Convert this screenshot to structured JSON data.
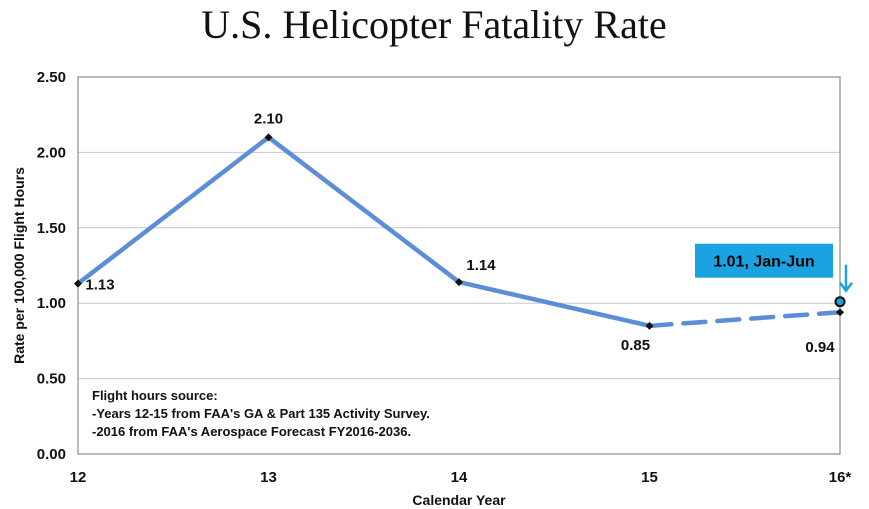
{
  "chart_data": {
    "type": "line",
    "title": "U.S. Helicopter Fatality Rate",
    "xlabel": "Calendar Year",
    "ylabel": "Rate per 100,000 Flight Hours",
    "categories": [
      "12",
      "13",
      "14",
      "15",
      "16*"
    ],
    "y_ticks": [
      "0.00",
      "0.50",
      "1.00",
      "1.50",
      "2.00",
      "2.50"
    ],
    "ylim": [
      0,
      2.5
    ],
    "grid": true,
    "series": [
      {
        "name": "Fatality rate",
        "values": [
          1.13,
          2.1,
          1.14,
          0.85,
          0.94
        ],
        "labels": [
          "1.13",
          "2.10",
          "1.14",
          "0.85",
          "0.94"
        ],
        "color": "#5b8ed6",
        "dashed_from_index": 3
      }
    ],
    "highlight_point": {
      "category": "16*",
      "value": 1.01,
      "label": "1.01, Jan-Jun",
      "color": "#1aa3e0"
    },
    "notes": [
      "Flight hours source:",
      "-Years 12-15 from FAA's GA & Part 135 Activity Survey.",
      "-2016 from FAA's Aerospace Forecast FY2016-2036."
    ]
  }
}
